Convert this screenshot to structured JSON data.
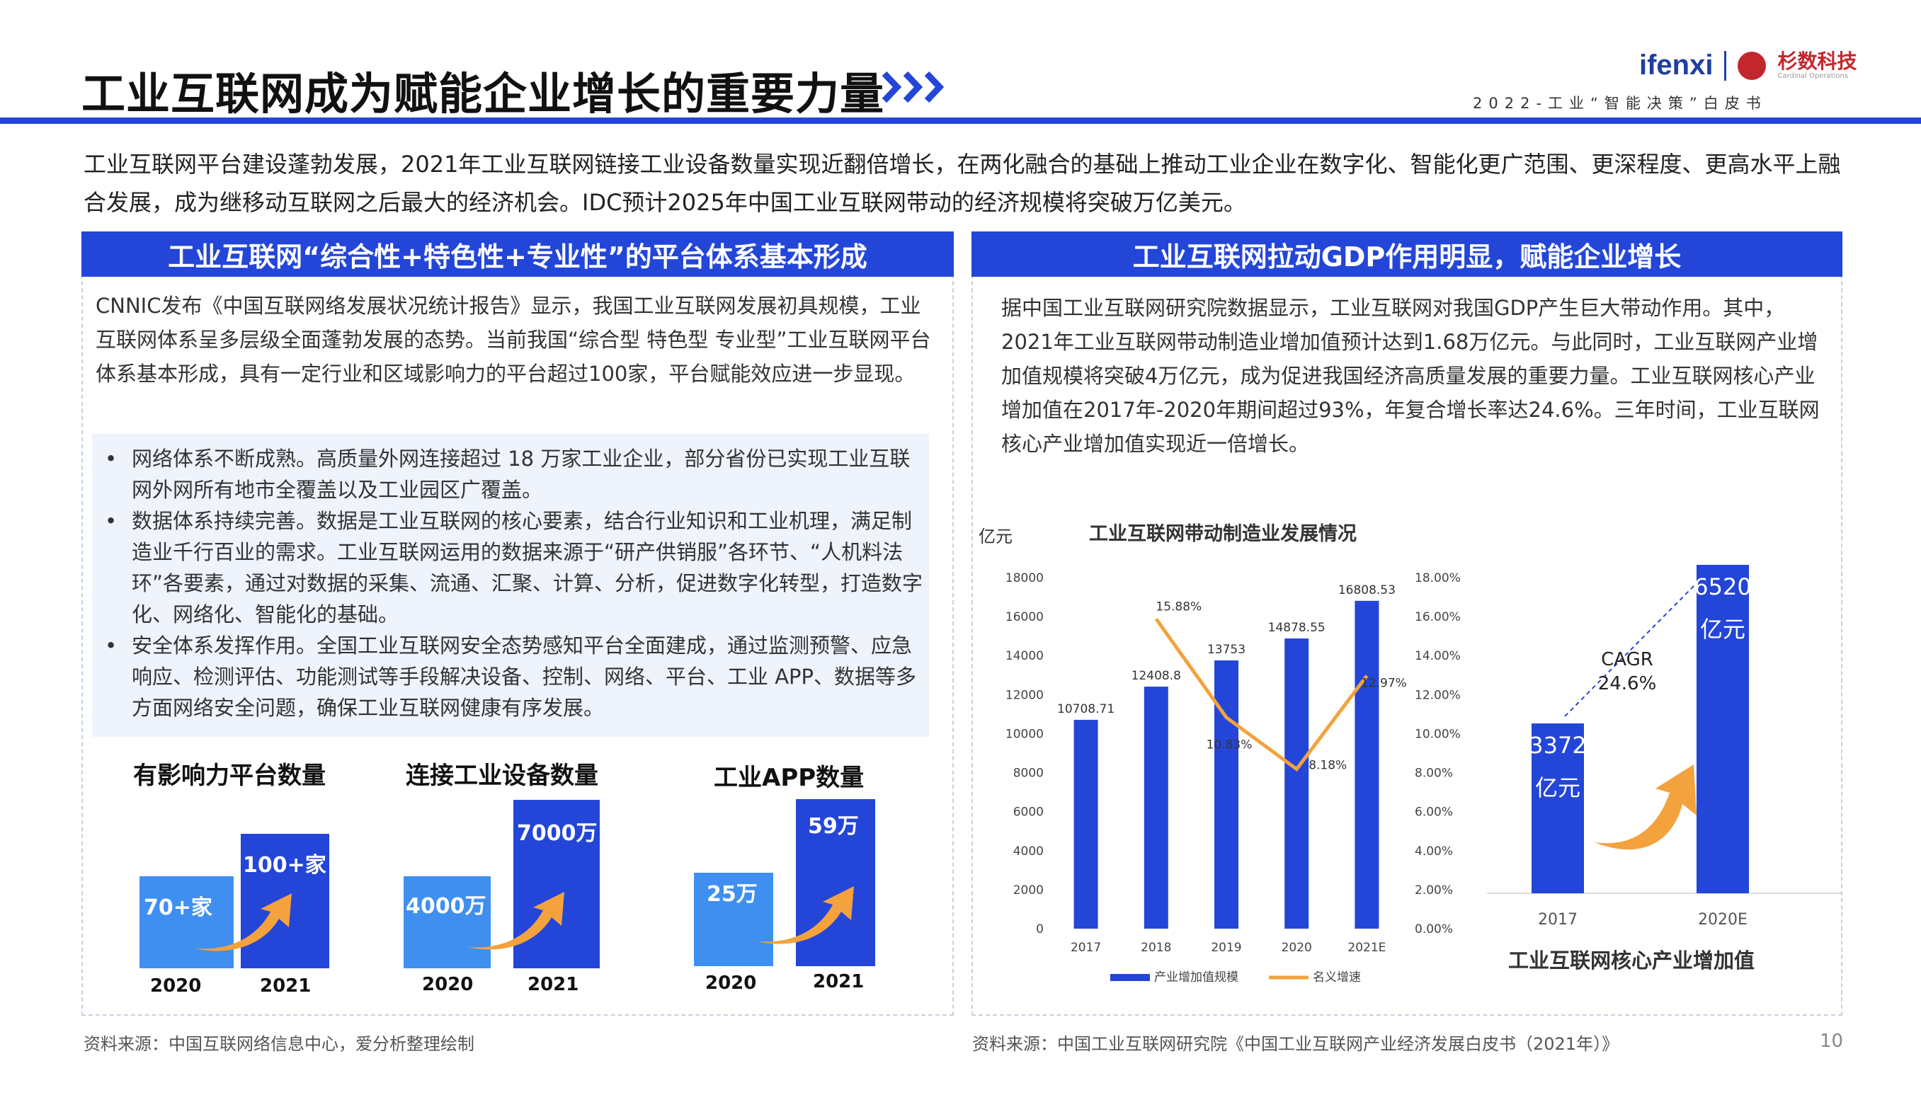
{
  "header": {
    "title": "工业互联网成为赋能企业增长的重要力量",
    "logo_text": "ifenxi",
    "partner_name": "杉数科技",
    "partner_en": "Cardinal Operations",
    "subtitle": "2022-工业“智能决策”白皮书"
  },
  "intro": "工业互联网平台建设蓬勃发展，2021年工业互联网链接工业设备数量实现近翻倍增长，在两化融合的基础上推动工业企业在数字化、智能化更广范围、更深程度、更高水平上融合发展，成为继移动互联网之后最大的经济机会。IDC预计2025年中国工业互联网带动的经济规模将突破万亿美元。",
  "left": {
    "heading": "工业互联网“综合性+特色性+专业性”的平台体系基本形成",
    "paragraph": "CNNIC发布《中国互联网络发展状况统计报告》显示，我国工业互联网发展初具规模，工业互联网体系呈多层级全面蓬勃发展的态势。当前我国“综合型 特色型 专业型”工业互联网平台体系基本形成，具有一定行业和区域影响力的平台超过100家，平台赋能效应进一步显现。",
    "bullets": [
      "网络体系不断成熟。高质量外网连接超过 18 万家工业企业，部分省份已实现工业互联网外网所有地市全覆盖以及工业园区广覆盖。",
      "数据体系持续完善。数据是工业互联网的核心要素，结合行业知识和工业机理，满足制造业千行百业的需求。工业互联网运用的数据来源于“研产供销服”各环节、“人机料法环”各要素，通过对数据的采集、流通、汇聚、计算、分析，促进数字化转型，打造数字化、网络化、智能化的基础。",
      "安全体系发挥作用。全国工业互联网安全态势感知平台全面建成，通过监测预警、应急响应、检测评估、功能测试等手段解决设备、控制、网络、平台、工业 APP、数据等多方面网络安全问题，确保工业互联网健康有序发展。"
    ],
    "source": "资料来源：中国互联网络信息中心，爱分析整理绘制"
  },
  "right": {
    "heading": "工业互联网拉动GDP作用明显，赋能企业增长",
    "paragraph": "据中国工业互联网研究院数据显示，工业互联网对我国GDP产生巨大带动作用。其中，2021年工业互联网带动制造业增加值预计达到1.68万亿元。与此同时，工业互联网产业增加值规模将突破4万亿元，成为促进我国经济高质量发展的重要力量。工业互联网核心产业增加值在2017年-2020年期间超过93%，年复合增长率达24.6%。三年时间，工业互联网核心产业增加值实现近一倍增长。",
    "source": "资料来源：中国工业互联网研究院《中国工业互联网产业经济发展白皮书（2021年）》"
  },
  "page_number": "10",
  "colors": {
    "accent": "#2346d8",
    "bar": "#2346d8",
    "bar_light": "#3f8ff0",
    "line": "#f4a23d",
    "arrow": "#f4a23d"
  },
  "chart_data": [
    {
      "type": "bar",
      "title": "有影响力平台数量",
      "categories": [
        "2020",
        "2021"
      ],
      "values": [
        70,
        100
      ],
      "value_labels": [
        "70+家",
        "100+家"
      ]
    },
    {
      "type": "bar",
      "title": "连接工业设备数量",
      "categories": [
        "2020",
        "2021"
      ],
      "values": [
        4000,
        7000
      ],
      "value_labels": [
        "4000万",
        "7000万"
      ]
    },
    {
      "type": "bar",
      "title": "工业APP数量",
      "categories": [
        "2020",
        "2021"
      ],
      "values": [
        25,
        59
      ],
      "value_labels": [
        "25万",
        "59万"
      ]
    },
    {
      "type": "bar",
      "title": "工业互联网带动制造业发展情况",
      "ylabel": "亿元",
      "categories": [
        "2017",
        "2018",
        "2019",
        "2020",
        "2021E"
      ],
      "series": [
        {
          "name": "产业增加值规模",
          "type": "bar",
          "values": [
            10708.71,
            12408.8,
            13753,
            14878.55,
            16808.53
          ]
        },
        {
          "name": "名义增速",
          "type": "line",
          "axis": "right",
          "values": [
            null,
            15.88,
            10.83,
            8.18,
            12.97
          ]
        }
      ],
      "data_labels_bar": [
        "10708.71",
        "12408.8",
        "13753",
        "14878.55",
        "16808.53"
      ],
      "data_labels_line": [
        "15.88%",
        "10.83%",
        "8.18%",
        "12.97%"
      ],
      "ylim": [
        0,
        18000
      ],
      "yticks": [
        "0",
        "2000",
        "4000",
        "6000",
        "8000",
        "10000",
        "12000",
        "14000",
        "16000",
        "18000"
      ],
      "y2lim": [
        0,
        18
      ],
      "y2ticks": [
        "0.00%",
        "2.00%",
        "4.00%",
        "6.00%",
        "8.00%",
        "10.00%",
        "12.00%",
        "14.00%",
        "16.00%",
        "18.00%"
      ],
      "legend": "bottom",
      "grid": false
    },
    {
      "type": "bar",
      "title": "工业互联网核心产业增加值",
      "categories": [
        "2017",
        "2020E"
      ],
      "values": [
        3372,
        6520
      ],
      "value_labels": [
        "3372",
        "6520"
      ],
      "unit_label": "亿元",
      "annotation": "CAGR\n24.6%"
    }
  ]
}
